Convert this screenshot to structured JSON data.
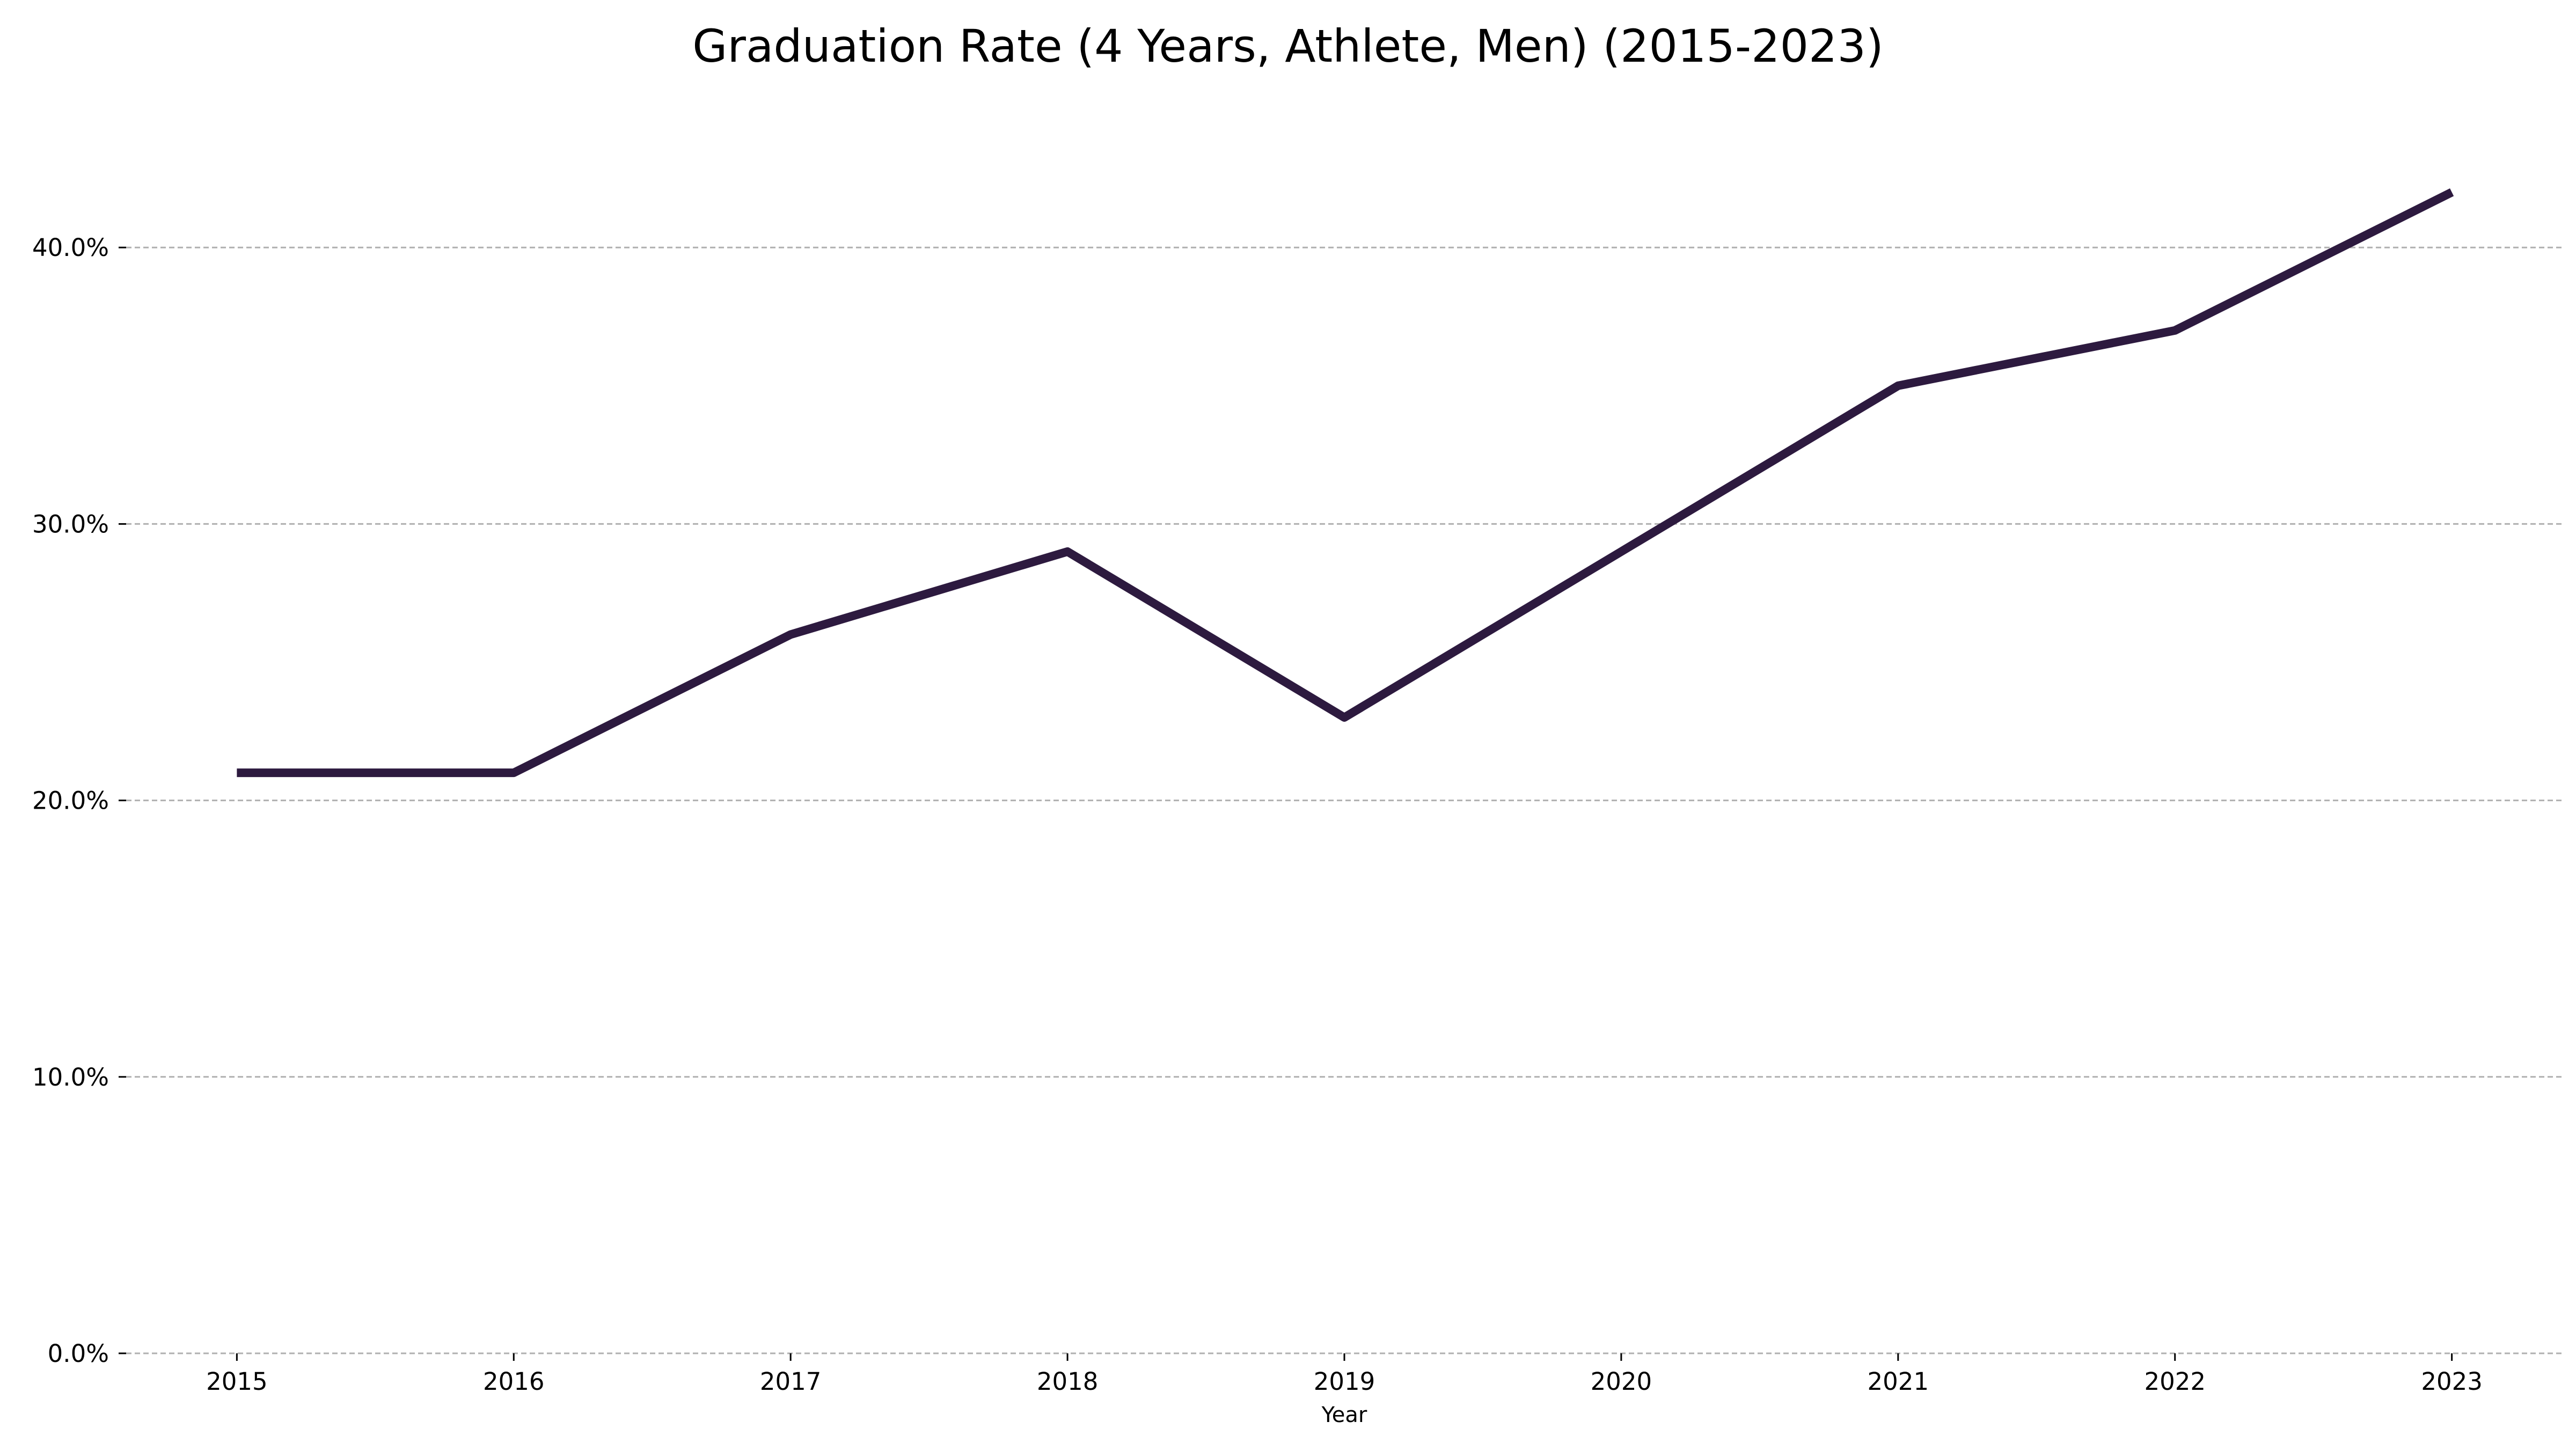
{
  "chart_data": {
    "type": "line",
    "title": "Graduation Rate (4 Years, Athlete, Men) (2015-2023)",
    "xlabel": "Year",
    "ylabel": "",
    "x": [
      2015,
      2016,
      2017,
      2018,
      2019,
      2020,
      2021,
      2022,
      2023
    ],
    "x_tick_labels": [
      "2015",
      "2016",
      "2017",
      "2018",
      "2019",
      "2020",
      "2021",
      "2022",
      "2023"
    ],
    "series": [
      {
        "values": [
          21,
          21,
          26,
          29,
          23,
          29,
          35,
          37,
          42
        ],
        "color": "#2d1a3f"
      }
    ],
    "y_ticks": [
      0,
      10,
      20,
      30,
      40
    ],
    "y_tick_labels": [
      "0.0%",
      "10.0%",
      "20.0%",
      "30.0%",
      "40.0%"
    ],
    "ylim": [
      0,
      44.1
    ],
    "xlim": [
      2014.6,
      2023.4
    ],
    "grid": "horizontal dashed",
    "legend": "none"
  }
}
